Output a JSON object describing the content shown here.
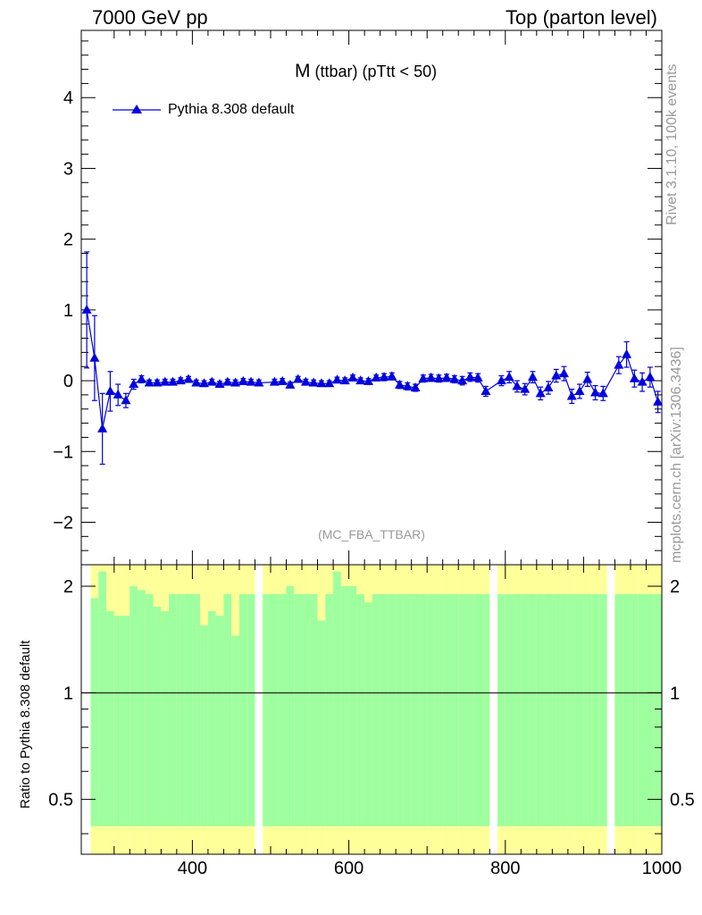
{
  "header": {
    "left": "7000 GeV pp",
    "right": "Top (parton level)"
  },
  "title": {
    "main": "M",
    "sub": "(ttbar)",
    "cut": "(pTtt < 50)"
  },
  "legend": {
    "label": "Pythia 8.308 default",
    "color": "#0000dd"
  },
  "analysis_id": "(MC_FBA_TTBAR)",
  "side": {
    "rivet": "Rivet 3.1.10,  100k events",
    "mcplots": "mcplots.cern.ch [arXiv:1306.3436]"
  },
  "ratio_ylabel": "Ratio to Pythia 8.308 default",
  "colors": {
    "series": "#0000dd",
    "band_green": "#9eff9e",
    "band_yellow": "#ffff99"
  },
  "chart_data": [
    {
      "type": "line",
      "title": "M (ttbar) (pTtt < 50)",
      "xlabel": "",
      "ylabel": "",
      "xlim": [
        258,
        1000
      ],
      "ylim": [
        -2.6,
        4.95
      ],
      "yticks": [
        -2,
        -1,
        0,
        1,
        2,
        3,
        4
      ],
      "yticklabels": [
        "−2",
        "−1",
        "0",
        "1",
        "2",
        "3",
        "4"
      ],
      "legend_position": "top-left",
      "series": [
        {
          "name": "Pythia 8.308 default",
          "x": [
            265,
            275,
            285,
            295,
            305,
            315,
            325,
            335,
            345,
            355,
            365,
            375,
            385,
            395,
            405,
            415,
            425,
            435,
            445,
            455,
            465,
            475,
            485,
            505,
            515,
            525,
            535,
            545,
            555,
            565,
            575,
            585,
            595,
            605,
            615,
            625,
            635,
            645,
            655,
            665,
            675,
            685,
            695,
            705,
            715,
            725,
            735,
            745,
            755,
            765,
            775,
            795,
            805,
            815,
            825,
            835,
            845,
            855,
            865,
            875,
            885,
            895,
            905,
            915,
            925,
            945,
            955,
            965,
            975,
            985,
            995
          ],
          "y": [
            1.0,
            0.32,
            -0.68,
            -0.15,
            -0.2,
            -0.28,
            -0.05,
            0.02,
            -0.03,
            -0.03,
            -0.02,
            -0.02,
            0.0,
            0.02,
            -0.03,
            -0.04,
            -0.02,
            -0.05,
            -0.02,
            -0.03,
            -0.01,
            -0.02,
            -0.03,
            -0.02,
            -0.01,
            -0.06,
            0.02,
            -0.02,
            -0.03,
            -0.04,
            -0.04,
            0.01,
            0.0,
            0.04,
            0.0,
            -0.01,
            0.04,
            0.05,
            0.06,
            -0.06,
            -0.08,
            -0.1,
            0.03,
            0.04,
            0.03,
            0.04,
            0.02,
            0.0,
            0.05,
            0.04,
            -0.15,
            0.0,
            0.05,
            -0.08,
            -0.12,
            0.05,
            -0.18,
            -0.1,
            0.07,
            0.1,
            -0.22,
            -0.15,
            0.02,
            -0.17,
            -0.18,
            0.22,
            0.37,
            0.03,
            -0.02,
            0.05,
            -0.3
          ],
          "yerr": [
            0.82,
            0.6,
            0.5,
            0.28,
            0.15,
            0.1,
            0.07,
            0.05,
            0.04,
            0.04,
            0.04,
            0.04,
            0.04,
            0.04,
            0.04,
            0.04,
            0.04,
            0.04,
            0.04,
            0.04,
            0.04,
            0.04,
            0.04,
            0.04,
            0.04,
            0.04,
            0.04,
            0.04,
            0.04,
            0.04,
            0.04,
            0.04,
            0.04,
            0.04,
            0.04,
            0.04,
            0.04,
            0.05,
            0.05,
            0.05,
            0.05,
            0.05,
            0.05,
            0.05,
            0.05,
            0.05,
            0.05,
            0.06,
            0.06,
            0.06,
            0.07,
            0.07,
            0.08,
            0.08,
            0.08,
            0.08,
            0.09,
            0.09,
            0.09,
            0.1,
            0.1,
            0.1,
            0.1,
            0.1,
            0.1,
            0.12,
            0.18,
            0.12,
            0.13,
            0.14,
            0.15
          ],
          "color": "#0000dd"
        }
      ]
    },
    {
      "type": "area",
      "title": "",
      "xlabel": "",
      "ylabel": "Ratio to Pythia 8.308 default",
      "xlim": [
        258,
        1000
      ],
      "ylim": [
        0.35,
        2.3
      ],
      "log_scale": true,
      "xticks": [
        400,
        600,
        800,
        1000
      ],
      "xticklabels": [
        "400",
        "600",
        "800",
        "1000"
      ],
      "yticks": [
        0.5,
        1,
        2
      ],
      "yticklabels": [
        "0.5",
        "1",
        "2"
      ],
      "reference_line": 1,
      "band_x_edges": [
        270,
        280,
        290,
        300,
        310,
        320,
        330,
        340,
        350,
        360,
        370,
        380,
        390,
        400,
        410,
        420,
        430,
        440,
        450,
        460,
        470,
        480,
        490,
        500,
        510,
        520,
        530,
        540,
        550,
        560,
        570,
        580,
        590,
        600,
        610,
        620,
        630,
        640,
        650,
        660,
        670,
        680,
        690,
        700,
        710,
        720,
        730,
        740,
        750,
        760,
        770,
        780,
        790,
        800,
        810,
        820,
        830,
        840,
        850,
        860,
        870,
        880,
        890,
        900,
        910,
        920,
        930,
        940,
        950,
        960,
        970,
        980,
        990,
        1000
      ],
      "band_green_upper": [
        1.85,
        2.2,
        1.7,
        1.65,
        1.65,
        2.0,
        1.95,
        1.9,
        1.75,
        1.7,
        1.9,
        1.9,
        1.9,
        1.9,
        1.55,
        1.7,
        1.65,
        1.9,
        1.45,
        1.9,
        1.9,
        2.05,
        1.9,
        1.9,
        1.9,
        2.0,
        1.9,
        1.9,
        1.9,
        1.6,
        1.9,
        2.2,
        2.0,
        2.0,
        1.9,
        1.8,
        1.9,
        1.9,
        1.9,
        1.9,
        1.9,
        1.9,
        1.9,
        1.9,
        1.9,
        1.9,
        1.9,
        1.9,
        1.9,
        1.9,
        1.9,
        1.9,
        1.9,
        1.9,
        1.9,
        1.9,
        1.9,
        1.9,
        1.9,
        1.9,
        1.9,
        1.9,
        1.9,
        1.9,
        1.9,
        1.9,
        1.9,
        1.9,
        1.9,
        1.9,
        1.9,
        1.9,
        1.9
      ],
      "band_note": "green = statistical uncertainty, yellow = stat. + syst. uncertainty"
    }
  ]
}
